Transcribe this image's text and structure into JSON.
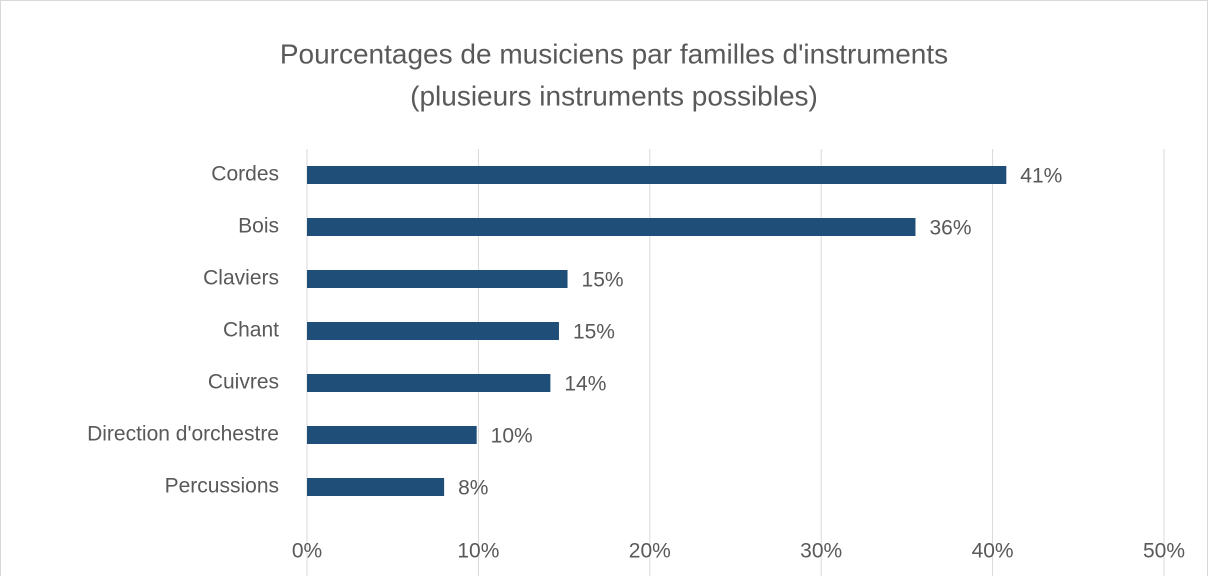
{
  "chart_data": {
    "type": "bar",
    "orientation": "horizontal",
    "title": "Pourcentages de musiciens par familles d'instruments",
    "subtitle": "(plusieurs instruments possibles)",
    "categories": [
      "Cordes",
      "Bois",
      "Claviers",
      "Chant",
      "Cuivres",
      "Direction d'orchestre",
      "Percussions"
    ],
    "values": [
      40.8,
      35.5,
      15.2,
      14.7,
      14.2,
      9.9,
      8.0
    ],
    "value_labels": [
      "41%",
      "36%",
      "15%",
      "15%",
      "14%",
      "10%",
      "8%"
    ],
    "color": "#1f4e79",
    "xlim": [
      0,
      50
    ],
    "xticks": [
      {
        "value": 0,
        "label": "0%"
      },
      {
        "value": 10,
        "label": "10%"
      },
      {
        "value": 20,
        "label": "20%"
      },
      {
        "value": 30,
        "label": "30%"
      },
      {
        "value": 40,
        "label": "40%"
      },
      {
        "value": 50,
        "label": "50%"
      }
    ],
    "grid": true
  }
}
